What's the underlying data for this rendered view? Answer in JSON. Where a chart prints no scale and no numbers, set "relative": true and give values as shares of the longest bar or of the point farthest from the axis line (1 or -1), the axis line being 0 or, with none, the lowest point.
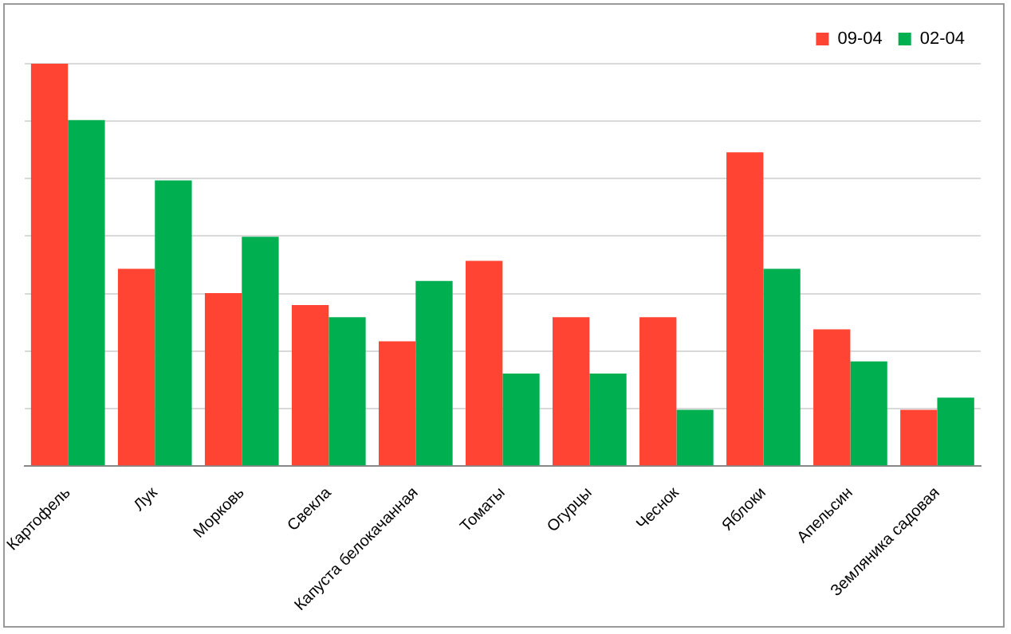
{
  "chart_data": {
    "type": "bar",
    "relative": true,
    "grid": "y",
    "legend": "top right",
    "categories": [
      "Картофель",
      "Лук",
      "Морковь",
      "Свекла",
      "Капуста белокачанная",
      "Томаты",
      "Огурцы",
      "Чеснок",
      "Яблоки",
      "Апельсин",
      "Земляника садовая"
    ],
    "series": [
      {
        "name": "09-04",
        "color": "#ff4433",
        "values": [
          1,
          0.49,
          0.43,
          0.4,
          0.31,
          0.51,
          0.37,
          0.37,
          0.78,
          0.34,
          0.14
        ]
      },
      {
        "name": "02-04",
        "color": "#00b050",
        "values": [
          0.86,
          0.71,
          0.57,
          0.37,
          0.46,
          0.23,
          0.23,
          0.14,
          0.49,
          0.26,
          0.17
        ]
      }
    ]
  }
}
